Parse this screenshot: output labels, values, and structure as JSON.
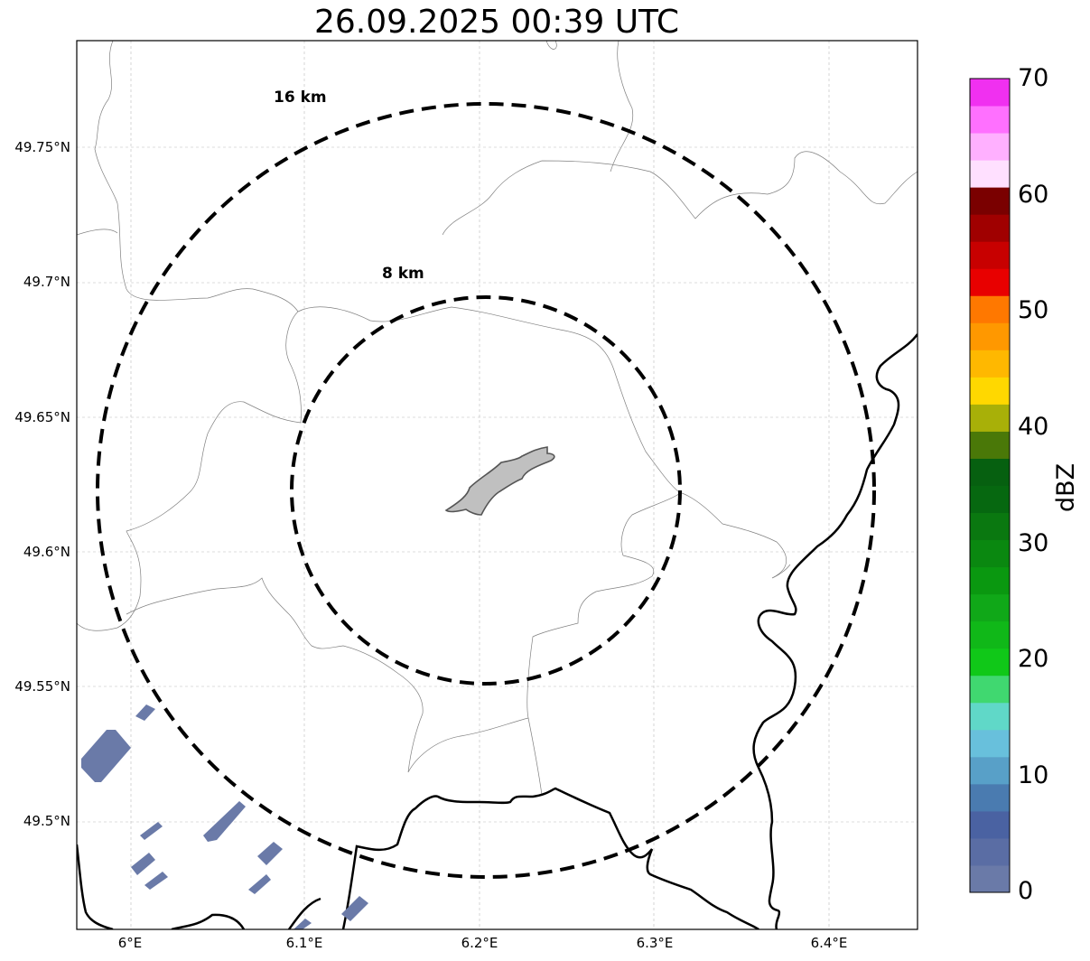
{
  "title": "26.09.2025 00:39 UTC",
  "map": {
    "lon_range": [
      5.97,
      6.45
    ],
    "lat_range": [
      49.46,
      49.79
    ],
    "gridlines": true,
    "x_ticks": [
      "6°E",
      "6.1°E",
      "6.2°E",
      "6.3°E",
      "6.4°E"
    ],
    "y_ticks": [
      "49.75°N",
      "49.7°N",
      "49.65°N",
      "49.6°N",
      "49.55°N",
      "49.5°N"
    ],
    "range_rings": [
      {
        "label": "16 km",
        "radius_km": 16
      },
      {
        "label": "8 km",
        "radius_km": 8
      }
    ],
    "center": {
      "lon": 6.2,
      "lat": 49.623
    },
    "echo_color": "#6a7aa8",
    "city_fill": "#c0c0c0"
  },
  "colorbar": {
    "label": "dBZ",
    "ticks": [
      "70",
      "60",
      "50",
      "40",
      "30",
      "20",
      "10",
      "0"
    ],
    "colors_bottom_to_top": [
      "#6a7aa8",
      "#5a6da4",
      "#4a62a2",
      "#4a7bb0",
      "#58a0c8",
      "#68c0dc",
      "#60d8c8",
      "#40d870",
      "#10c818",
      "#10b818",
      "#10a818",
      "#0a9810",
      "#0a8810",
      "#0a7810",
      "#066810",
      "#066010",
      "#4a7808",
      "#a8b008",
      "#ffd800",
      "#ffb800",
      "#ff9800",
      "#ff7800",
      "#e80000",
      "#c80000",
      "#a00000",
      "#7a0000",
      "#ffe0ff",
      "#ffb0ff",
      "#ff70ff",
      "#f030f0"
    ]
  }
}
